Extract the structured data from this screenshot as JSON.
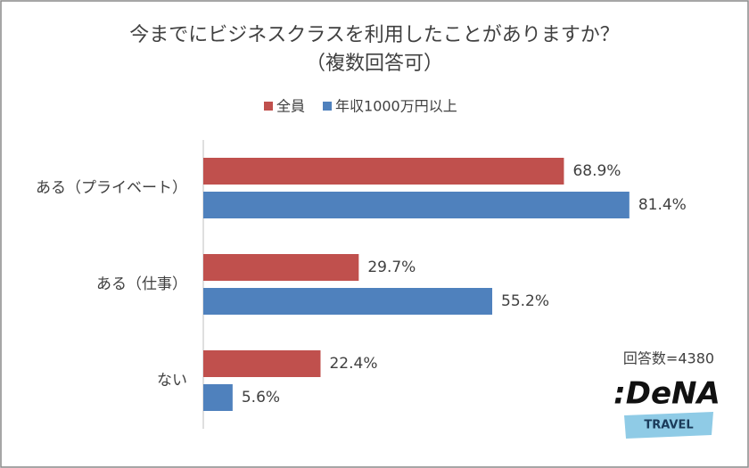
{
  "chart_data": {
    "type": "bar",
    "orientation": "horizontal",
    "title": "今までにビジネスクラスを利用したことがありますか？",
    "subtitle": "（複数回答可）",
    "categories": [
      "ある（プライベート）",
      "ある（仕事）",
      "ない"
    ],
    "series": [
      {
        "name": "全員",
        "color": "#c0504d",
        "values": [
          68.9,
          29.7,
          22.4
        ],
        "value_labels": [
          "68.9%",
          "29.7%",
          "22.4%"
        ]
      },
      {
        "name": "年収1000万円以上",
        "color": "#4f81bd",
        "values": [
          81.4,
          55.2,
          5.6
        ],
        "value_labels": [
          "81.4%",
          "55.2%",
          "5.6%"
        ]
      }
    ],
    "legend": "top",
    "annotations": [
      "回答数=4380"
    ],
    "logo": {
      "name": ":DeNA",
      "sub": "TRAVEL"
    }
  }
}
